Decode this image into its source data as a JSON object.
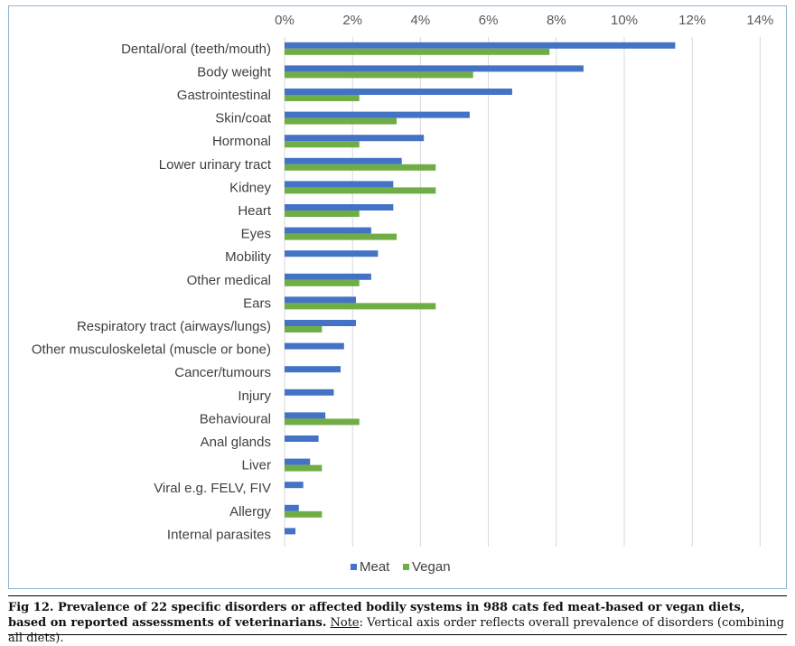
{
  "chart_data": {
    "type": "bar",
    "orientation": "horizontal",
    "title": "",
    "xlabel": "",
    "ylabel": "",
    "xlim": [
      0,
      14
    ],
    "x_ticks": [
      "0%",
      "2%",
      "4%",
      "6%",
      "8%",
      "10%",
      "12%",
      "14%"
    ],
    "x_tick_values": [
      0,
      2,
      4,
      6,
      8,
      10,
      12,
      14
    ],
    "grid": true,
    "legend_position": "bottom",
    "categories": [
      "Dental/oral (teeth/mouth)",
      "Body weight",
      "Gastrointestinal",
      "Skin/coat",
      "Hormonal",
      "Lower urinary tract",
      "Kidney",
      "Heart",
      "Eyes",
      "Mobility",
      "Other medical",
      "Ears",
      "Respiratory tract (airways/lungs)",
      "Other musculoskeletal (muscle or bone)",
      "Cancer/tumours",
      "Injury",
      "Behavioural",
      "Anal glands",
      "Liver",
      "Viral e.g. FELV, FIV",
      "Allergy",
      "Internal parasites"
    ],
    "series": [
      {
        "name": "Meat",
        "color": "#4472c4",
        "values": [
          11.5,
          8.8,
          6.7,
          5.45,
          4.1,
          3.45,
          3.2,
          3.2,
          2.55,
          2.75,
          2.55,
          2.1,
          2.1,
          1.75,
          1.65,
          1.45,
          1.2,
          1.0,
          0.75,
          0.55,
          0.42,
          0.32
        ]
      },
      {
        "name": "Vegan",
        "color": "#70ad47",
        "values": [
          7.8,
          5.55,
          2.2,
          3.3,
          2.2,
          4.45,
          4.45,
          2.2,
          3.3,
          0,
          2.2,
          4.45,
          1.1,
          0,
          0,
          0,
          2.2,
          0,
          1.1,
          0,
          1.1,
          0
        ]
      }
    ]
  },
  "caption": {
    "label": "Fig 12.",
    "title": "Prevalence of 22 specific disorders or affected bodily systems in 988 cats fed meat-based or vegan diets, based on reported assessments of veterinarians.",
    "note_label": "Note",
    "note_text": ": Vertical axis order reflects overall prevalence of disorders (combining all diets)."
  }
}
